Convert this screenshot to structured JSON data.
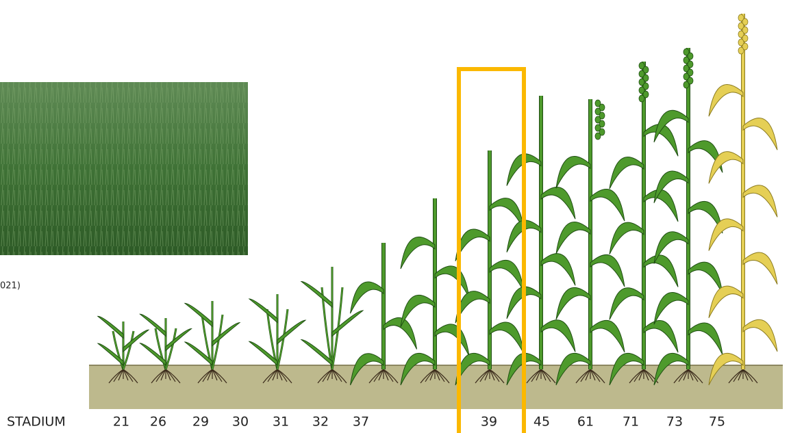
{
  "photo_caption": "021)",
  "stage_label": "STADIUM",
  "stages": [
    21,
    26,
    29,
    30,
    31,
    32,
    37,
    39,
    45,
    61,
    71,
    73,
    75
  ],
  "highlighted_stage": 39
}
